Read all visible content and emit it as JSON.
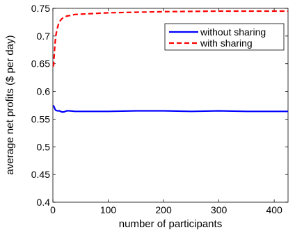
{
  "chart_data": {
    "type": "line",
    "title": "",
    "xlabel": "number of participants",
    "ylabel": "average net profits ($ per day)",
    "xlim": [
      0,
      425
    ],
    "ylim": [
      0.4,
      0.75
    ],
    "xticks": [
      0,
      100,
      200,
      300,
      400
    ],
    "yticks": [
      0.4,
      0.45,
      0.5,
      0.55,
      0.6,
      0.65,
      0.7,
      0.75
    ],
    "xtick_labels": [
      "0",
      "100",
      "200",
      "300",
      "400"
    ],
    "ytick_labels": [
      "0.4",
      "0.45",
      "0.5",
      "0.55",
      "0.6",
      "0.65",
      "0.7",
      "0.75"
    ],
    "grid": false,
    "legend_position": "top-right",
    "series": [
      {
        "name": "without sharing",
        "color": "#0000ff",
        "style": "solid",
        "x": [
          1,
          3,
          5,
          8,
          12,
          16,
          20,
          25,
          30,
          40,
          60,
          100,
          150,
          200,
          250,
          300,
          350,
          400,
          425
        ],
        "y": [
          0.575,
          0.57,
          0.566,
          0.565,
          0.565,
          0.563,
          0.563,
          0.565,
          0.565,
          0.564,
          0.564,
          0.564,
          0.565,
          0.565,
          0.564,
          0.565,
          0.564,
          0.564,
          0.564
        ]
      },
      {
        "name": "with sharing",
        "color": "#ff0000",
        "style": "dashed",
        "x": [
          1,
          2,
          3,
          4,
          5,
          6,
          8,
          10,
          13,
          16,
          20,
          25,
          30,
          40,
          60,
          100,
          200,
          300,
          425
        ],
        "y": [
          0.645,
          0.66,
          0.675,
          0.688,
          0.697,
          0.705,
          0.714,
          0.721,
          0.727,
          0.731,
          0.734,
          0.736,
          0.737,
          0.739,
          0.74,
          0.742,
          0.744,
          0.745,
          0.745
        ]
      }
    ]
  }
}
